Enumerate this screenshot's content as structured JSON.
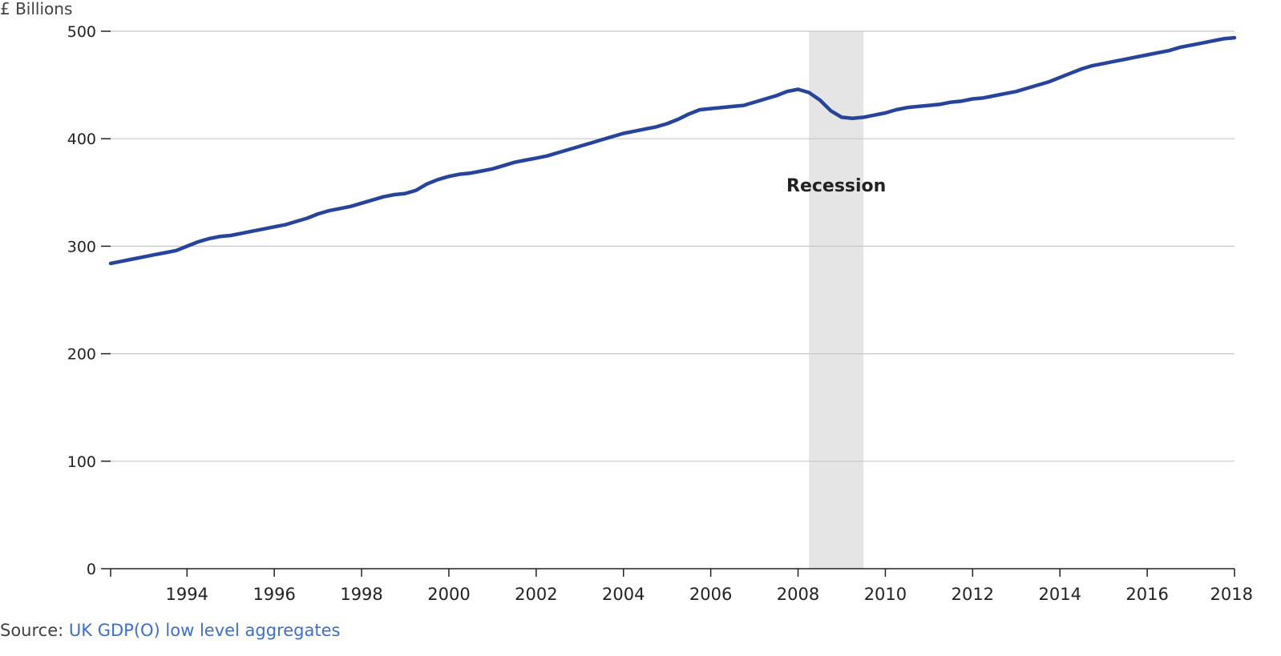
{
  "chart_data": {
    "type": "line",
    "ylabel": "£ Billions",
    "ylim": [
      0,
      500
    ],
    "yticks": [
      "0",
      "100",
      "200",
      "300",
      "400",
      "500"
    ],
    "yticks_values": [
      0,
      100,
      200,
      300,
      400,
      500
    ],
    "xlim": [
      1992.25,
      2018.0
    ],
    "xticks": [
      "1994",
      "1996",
      "1998",
      "2000",
      "2002",
      "2004",
      "2006",
      "2008",
      "2010",
      "2012",
      "2014",
      "2016",
      "2018"
    ],
    "xticks_values": [
      1994,
      1996,
      1998,
      2000,
      2002,
      2004,
      2006,
      2008,
      2010,
      2012,
      2014,
      2016,
      2018
    ],
    "grid": true,
    "colors": {
      "line": "#27449c",
      "recession": "#e5e5e5",
      "grid": "#c8c8c8",
      "axis": "#222222",
      "text": "#222222"
    },
    "recession": {
      "label": "Recession",
      "start": 2008.25,
      "end": 2009.5
    },
    "series": [
      {
        "x": [
          1992.25,
          1992.5,
          1992.75,
          1993.0,
          1993.25,
          1993.5,
          1993.75,
          1994.0,
          1994.25,
          1994.5,
          1994.75,
          1995.0,
          1995.25,
          1995.5,
          1995.75,
          1996.0,
          1996.25,
          1996.5,
          1996.75,
          1997.0,
          1997.25,
          1997.5,
          1997.75,
          1998.0,
          1998.25,
          1998.5,
          1998.75,
          1999.0,
          1999.25,
          1999.5,
          1999.75,
          2000.0,
          2000.25,
          2000.5,
          2000.75,
          2001.0,
          2001.25,
          2001.5,
          2001.75,
          2002.0,
          2002.25,
          2002.5,
          2002.75,
          2003.0,
          2003.25,
          2003.5,
          2003.75,
          2004.0,
          2004.25,
          2004.5,
          2004.75,
          2005.0,
          2005.25,
          2005.5,
          2005.75,
          2006.0,
          2006.25,
          2006.5,
          2006.75,
          2007.0,
          2007.25,
          2007.5,
          2007.75,
          2008.0,
          2008.25,
          2008.5,
          2008.75,
          2009.0,
          2009.25,
          2009.5,
          2009.75,
          2010.0,
          2010.25,
          2010.5,
          2010.75,
          2011.0,
          2011.25,
          2011.5,
          2011.75,
          2012.0,
          2012.25,
          2012.5,
          2012.75,
          2013.0,
          2013.25,
          2013.5,
          2013.75,
          2014.0,
          2014.25,
          2014.5,
          2014.75,
          2015.0,
          2015.25,
          2015.5,
          2015.75,
          2016.0,
          2016.25,
          2016.5,
          2016.75,
          2017.0,
          2017.25,
          2017.5,
          2017.75,
          2018.0
        ],
        "values": [
          284,
          286,
          288,
          290,
          292,
          294,
          296,
          300,
          304,
          307,
          309,
          310,
          312,
          314,
          316,
          318,
          320,
          323,
          326,
          330,
          333,
          335,
          337,
          340,
          343,
          346,
          348,
          349,
          352,
          358,
          362,
          365,
          367,
          368,
          370,
          372,
          375,
          378,
          380,
          382,
          384,
          387,
          390,
          393,
          396,
          399,
          402,
          405,
          407,
          409,
          411,
          414,
          418,
          423,
          427,
          428,
          429,
          430,
          431,
          434,
          437,
          440,
          444,
          446,
          443,
          436,
          426,
          420,
          419,
          420,
          422,
          424,
          427,
          429,
          430,
          431,
          432,
          434,
          435,
          437,
          438,
          440,
          442,
          444,
          447,
          450,
          453,
          457,
          461,
          465,
          468,
          470,
          472,
          474,
          476,
          478,
          480,
          482,
          485,
          487,
          489,
          491,
          493,
          494
        ]
      }
    ]
  },
  "source": {
    "prefix": "Source: ",
    "link_text": "UK GDP(O) low level aggregates"
  }
}
